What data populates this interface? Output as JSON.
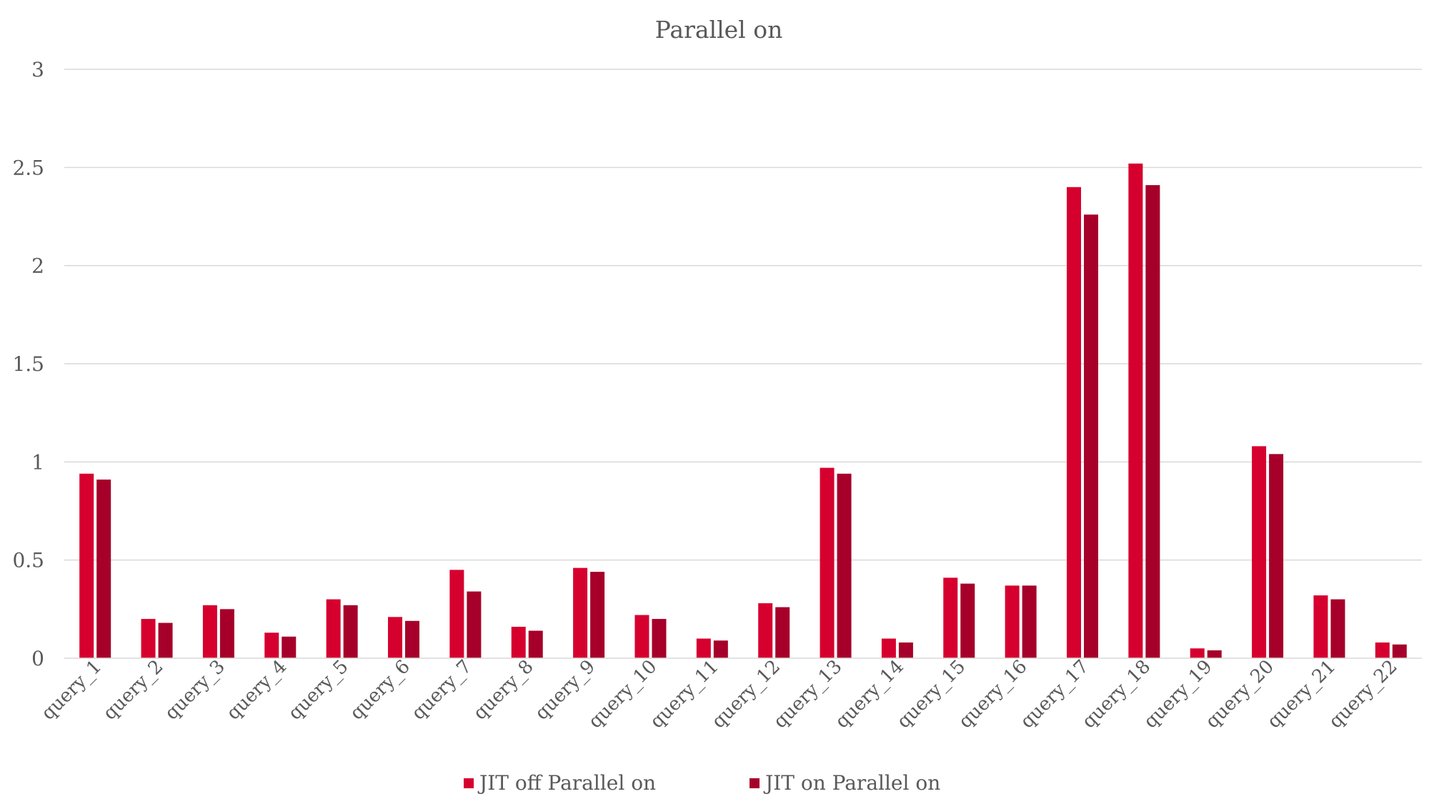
{
  "chart_data": {
    "type": "bar",
    "title": "Parallel on",
    "xlabel": "",
    "ylabel": "",
    "ylim": [
      0,
      3
    ],
    "yticks": [
      0,
      0.5,
      1,
      1.5,
      2,
      2.5,
      3
    ],
    "ytick_labels": [
      "0",
      "0.5",
      "1",
      "1.5",
      "2",
      "2.5",
      "3"
    ],
    "grid": true,
    "legend_position": "bottom",
    "categories": [
      "query_1",
      "query_2",
      "query_3",
      "query_4",
      "query_5",
      "query_6",
      "query_7",
      "query_8",
      "query_9",
      "query_10",
      "query_11",
      "query_12",
      "query_13",
      "query_14",
      "query_15",
      "query_16",
      "query_17",
      "query_18",
      "query_19",
      "query_20",
      "query_21",
      "query_22"
    ],
    "series": [
      {
        "name": "JIT off Parallel on",
        "color": "#d6002f",
        "values": [
          0.94,
          0.2,
          0.27,
          0.13,
          0.3,
          0.21,
          0.45,
          0.16,
          0.46,
          0.22,
          0.1,
          0.28,
          0.97,
          0.1,
          0.41,
          0.37,
          2.4,
          2.52,
          0.05,
          1.08,
          0.32,
          0.08
        ]
      },
      {
        "name": "JIT on Parallel on",
        "color": "#a6002a",
        "values": [
          0.91,
          0.18,
          0.25,
          0.11,
          0.27,
          0.19,
          0.34,
          0.14,
          0.44,
          0.2,
          0.09,
          0.26,
          0.94,
          0.08,
          0.38,
          0.37,
          2.26,
          2.41,
          0.04,
          1.04,
          0.3,
          0.07
        ]
      }
    ]
  }
}
